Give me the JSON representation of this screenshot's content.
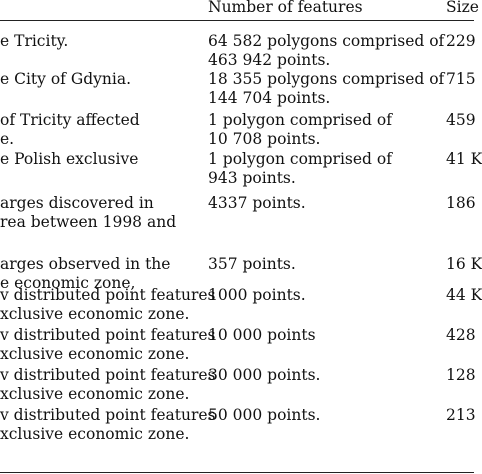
{
  "table": {
    "headers": [
      "",
      "Number of features",
      "Size"
    ],
    "display_headers": [
      "",
      "Number of features",
      "Size"
    ],
    "rows": [
      {
        "description": [
          "e Tricity."
        ],
        "features": [
          "64 582 polygons comprised of",
          "463 942 points."
        ],
        "size": "229"
      },
      {
        "description": [
          "e City of Gdynia."
        ],
        "features": [
          "18 355 polygons comprised of",
          "144 704 points."
        ],
        "size": "715"
      },
      {
        "description": [
          "of Tricity affected",
          "e."
        ],
        "features": [
          "1 polygon comprised of",
          "10 708 points."
        ],
        "size": "459"
      },
      {
        "description": [
          "e Polish exclusive"
        ],
        "features": [
          "1 polygon comprised of",
          "943 points."
        ],
        "size": "41 K"
      },
      {
        "description": [
          "arges discovered in",
          "rea between 1998 and"
        ],
        "features": [
          "4337 points."
        ],
        "size": "186"
      },
      {
        "description": [
          "arges observed in the",
          "e economic zone,"
        ],
        "features": [
          "357 points."
        ],
        "size": "16 K"
      },
      {
        "description": [
          "v distributed point features",
          "xclusive economic zone."
        ],
        "features": [
          "1000 points."
        ],
        "size": "44 K"
      },
      {
        "description": [
          "v distributed point features",
          "xclusive economic zone."
        ],
        "features": [
          "10 000 points"
        ],
        "size": "428"
      },
      {
        "description": [
          "v distributed point features",
          "xclusive economic zone."
        ],
        "features": [
          "30 000 points."
        ],
        "size": "128"
      },
      {
        "description": [
          "v distributed point features",
          "xclusive economic zone."
        ],
        "features": [
          "50 000 points."
        ],
        "size": "213"
      }
    ]
  }
}
